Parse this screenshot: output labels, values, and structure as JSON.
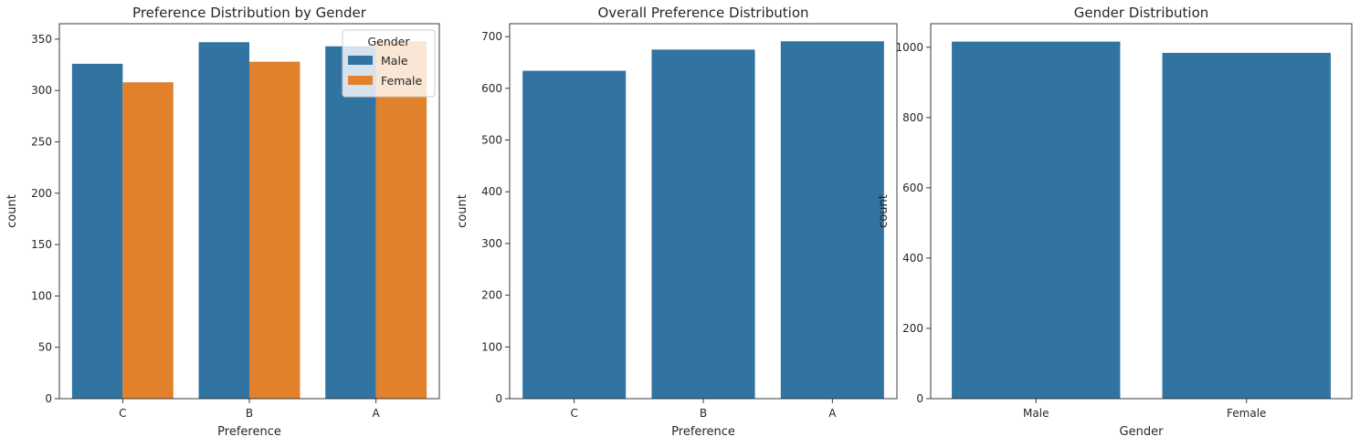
{
  "chart_data": [
    {
      "type": "bar",
      "title": "Preference Distribution by Gender",
      "xlabel": "Preference",
      "ylabel": "count",
      "categories": [
        "C",
        "B",
        "A"
      ],
      "series": [
        {
          "name": "Male",
          "color": "#3274a1",
          "values": [
            326,
            347,
            343
          ]
        },
        {
          "name": "Female",
          "color": "#e1812c",
          "values": [
            308,
            328,
            348
          ]
        }
      ],
      "ylim": [
        0,
        365
      ],
      "yticks": [
        0,
        50,
        100,
        150,
        200,
        250,
        300,
        350
      ],
      "grid": false,
      "legend": {
        "title": "Gender",
        "placement": "top-right"
      }
    },
    {
      "type": "bar",
      "title": "Overall Preference Distribution",
      "xlabel": "Preference",
      "ylabel": "count",
      "categories": [
        "C",
        "B",
        "A"
      ],
      "series": [
        {
          "color": "#3274a1",
          "values": [
            634,
            675,
            691
          ]
        }
      ],
      "ylim": [
        0,
        725
      ],
      "yticks": [
        0,
        100,
        200,
        300,
        400,
        500,
        600,
        700
      ],
      "grid": false
    },
    {
      "type": "bar",
      "title": "Gender Distribution",
      "xlabel": "Gender",
      "ylabel": "count",
      "categories": [
        "Male",
        "Female"
      ],
      "series": [
        {
          "color": "#3274a1",
          "values": [
            1016,
            984
          ]
        }
      ],
      "ylim": [
        0,
        1067
      ],
      "yticks": [
        0,
        200,
        400,
        600,
        800,
        1000
      ],
      "grid": false
    }
  ]
}
